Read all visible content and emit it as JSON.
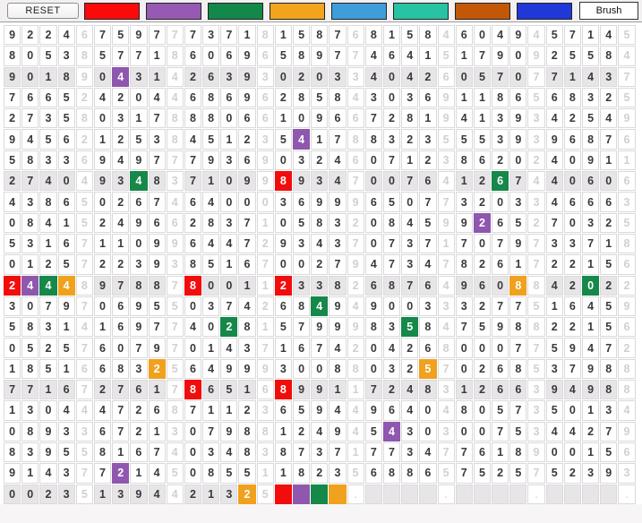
{
  "toolbar": {
    "reset_label": "RESET",
    "brush_label": "Brush",
    "swatches": [
      {
        "name": "red",
        "color": "#fb0a0a"
      },
      {
        "name": "purple",
        "color": "#9659b4"
      },
      {
        "name": "green",
        "color": "#12884a"
      },
      {
        "name": "orange",
        "color": "#f2a41c"
      },
      {
        "name": "light-blue",
        "color": "#3d9edb"
      },
      {
        "name": "teal",
        "color": "#27c3a3"
      },
      {
        "name": "brown",
        "color": "#c25708"
      },
      {
        "name": "blue",
        "color": "#2038d8"
      }
    ]
  },
  "grid": {
    "columns": 35,
    "cell_legend": {
      "digit": "0-9",
      "painted_blank": "#",
      "dot": ".",
      "blank": " "
    },
    "rows": [
      "92246759777371815876815846049457145",
      "80538577186069658977464151790925584",
      "90189043142639302033404260570771437",
      "76652420446869628584303691186568325",
      "27358031788806610966728194139342549",
      "94562125384512354178832355539396876",
      "58336949777936903246071238620240911",
      "27404934837109989347007641267440606",
      "43865026746400036999650773203346663",
      "08415249662837105832084599265270325",
      "53167110996447293437073717079733718",
      "01257223938516700279473478261722156",
      "24448978878001123382687649608842022",
      "30797069550374268494900333277516459",
      "58314169774028157999835847598822156",
      "05257607970143716742042680007759472",
      "18516683256499930088032570268537988",
      "77167276178651689911724831266394988",
      "13044472687112365944964048057350134",
      "08933672130798812494543030075344279",
      "83955816740348387371773477618900156",
      "91437721450855118235688657525752393",
      "002351394421325####.    .    .    ."
    ],
    "shaded_row_indexes": [
      2,
      7,
      12,
      17,
      22
    ],
    "highlight_colors": {
      "red": "#f20d0d",
      "purple": "#8f57ae",
      "green": "#15884a",
      "orange": "#f0a11e"
    },
    "highlights": [
      {
        "row": 2,
        "col": 6,
        "color": "purple"
      },
      {
        "row": 5,
        "col": 16,
        "color": "purple"
      },
      {
        "row": 7,
        "col": 7,
        "color": "green"
      },
      {
        "row": 7,
        "col": 15,
        "color": "red"
      },
      {
        "row": 7,
        "col": 27,
        "color": "green"
      },
      {
        "row": 9,
        "col": 26,
        "color": "purple"
      },
      {
        "row": 12,
        "col": 0,
        "color": "red"
      },
      {
        "row": 12,
        "col": 1,
        "color": "purple"
      },
      {
        "row": 12,
        "col": 2,
        "color": "green"
      },
      {
        "row": 12,
        "col": 3,
        "color": "orange"
      },
      {
        "row": 12,
        "col": 10,
        "color": "red"
      },
      {
        "row": 12,
        "col": 15,
        "color": "red"
      },
      {
        "row": 12,
        "col": 28,
        "color": "orange"
      },
      {
        "row": 12,
        "col": 32,
        "color": "green"
      },
      {
        "row": 13,
        "col": 17,
        "color": "green"
      },
      {
        "row": 14,
        "col": 12,
        "color": "green"
      },
      {
        "row": 14,
        "col": 22,
        "color": "green"
      },
      {
        "row": 16,
        "col": 8,
        "color": "orange"
      },
      {
        "row": 16,
        "col": 23,
        "color": "orange"
      },
      {
        "row": 17,
        "col": 10,
        "color": "red"
      },
      {
        "row": 17,
        "col": 15,
        "color": "red"
      },
      {
        "row": 19,
        "col": 21,
        "color": "purple"
      },
      {
        "row": 21,
        "col": 6,
        "color": "purple"
      },
      {
        "row": 22,
        "col": 13,
        "color": "orange"
      },
      {
        "row": 22,
        "col": 15,
        "color": "red"
      },
      {
        "row": 22,
        "col": 16,
        "color": "purple"
      },
      {
        "row": 22,
        "col": 17,
        "color": "green"
      },
      {
        "row": 22,
        "col": 18,
        "color": "orange"
      }
    ],
    "colors": {
      "digit": "#3a3a3a",
      "digit_muted": "#d2cfd2",
      "shaded_row_bg": "#e8e5e8",
      "cell_border": "#dadada"
    }
  }
}
